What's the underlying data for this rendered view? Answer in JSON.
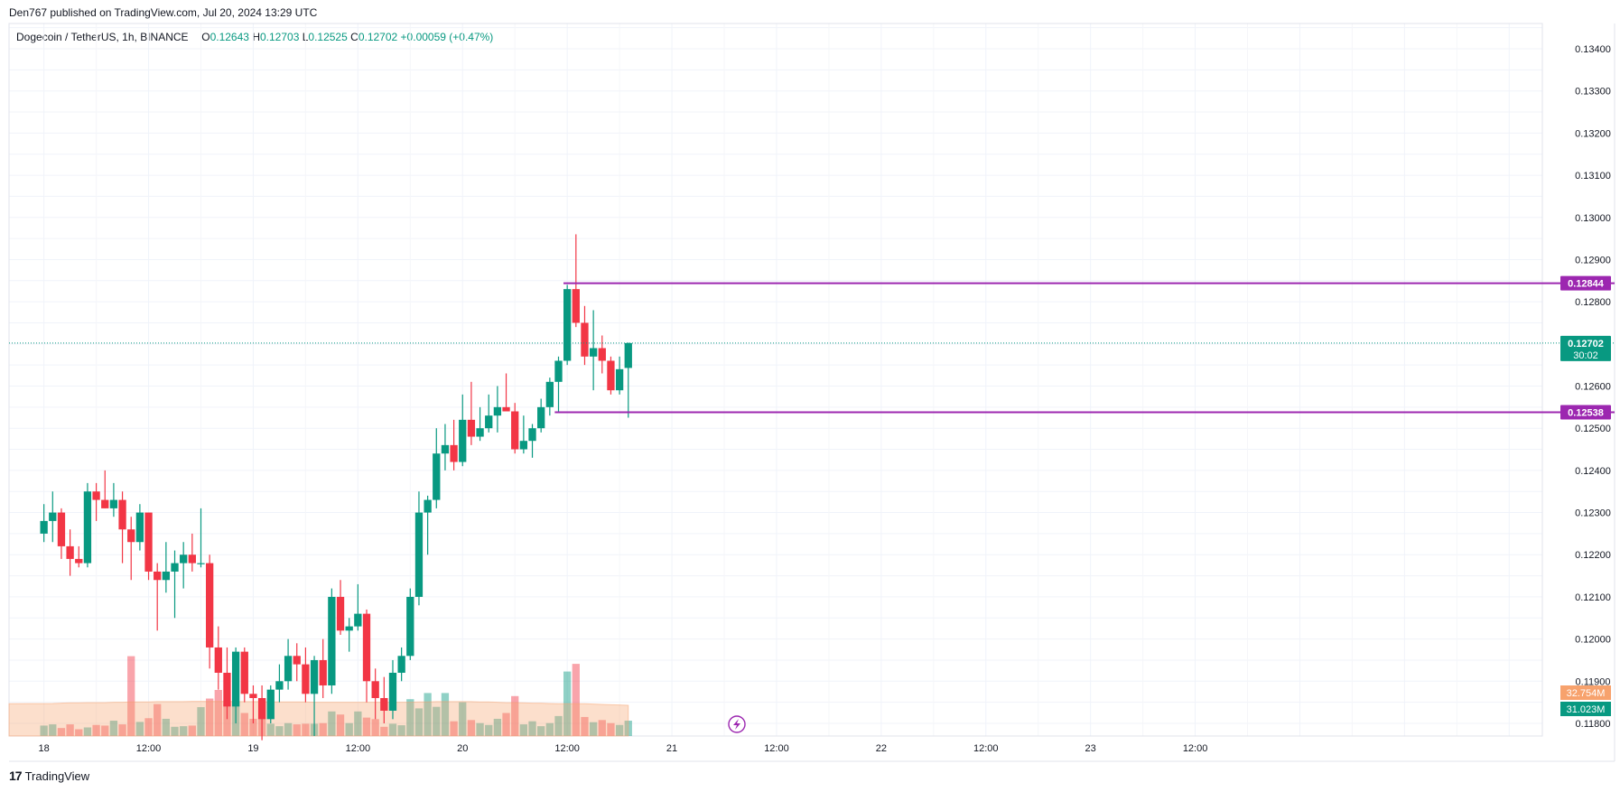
{
  "header": {
    "published": "Den767 published on TradingView.com, Jul 20, 2024 13:29 UTC"
  },
  "legend": {
    "symbol": "Dogecoin / TetherUS, 1h, BINANCE",
    "open_label": "O",
    "open": "0.12643",
    "high_label": "H",
    "high": "0.12703",
    "low_label": "L",
    "low": "0.12525",
    "close_label": "C",
    "close": "0.12702",
    "change": "+0.00059 (+0.47%)"
  },
  "footer": {
    "brand": "TradingView",
    "logo": "17"
  },
  "colors": {
    "up": "#089981",
    "down": "#f23645",
    "level": "#9c27b0",
    "volume_ma": "#f7a26d"
  },
  "chart_data": {
    "type": "candlestick",
    "y_ticks": [
      "0.13400",
      "0.13300",
      "0.13200",
      "0.13100",
      "0.13000",
      "0.12900",
      "0.12800",
      "0.12600",
      "0.12500",
      "0.12400",
      "0.12300",
      "0.12200",
      "0.12100",
      "0.12000",
      "0.11900",
      "0.11800"
    ],
    "y_range": [
      0.1177,
      0.1346
    ],
    "x_ticks": [
      "18",
      "12:00",
      "19",
      "12:00",
      "20",
      "12:00",
      "21",
      "12:00",
      "22",
      "12:00",
      "23",
      "12:00"
    ],
    "x_range_hours": [
      -4,
      171.8
    ],
    "grid": true,
    "candles": [
      {
        "o": 0.1225,
        "h": 0.1232,
        "l": 0.1223,
        "c": 0.1228
      },
      {
        "o": 0.1228,
        "h": 0.1235,
        "l": 0.1223,
        "c": 0.123
      },
      {
        "o": 0.123,
        "h": 0.1231,
        "l": 0.1219,
        "c": 0.1222
      },
      {
        "o": 0.1222,
        "h": 0.1226,
        "l": 0.1215,
        "c": 0.1219
      },
      {
        "o": 0.1219,
        "h": 0.1222,
        "l": 0.1217,
        "c": 0.1218
      },
      {
        "o": 0.1218,
        "h": 0.1237,
        "l": 0.1217,
        "c": 0.1235
      },
      {
        "o": 0.1235,
        "h": 0.1237,
        "l": 0.1228,
        "c": 0.1233
      },
      {
        "o": 0.1233,
        "h": 0.124,
        "l": 0.1231,
        "c": 0.1231
      },
      {
        "o": 0.1231,
        "h": 0.1237,
        "l": 0.1229,
        "c": 0.1233
      },
      {
        "o": 0.1233,
        "h": 0.1235,
        "l": 0.1218,
        "c": 0.1226
      },
      {
        "o": 0.1226,
        "h": 0.1229,
        "l": 0.1214,
        "c": 0.1223
      },
      {
        "o": 0.1223,
        "h": 0.1232,
        "l": 0.1221,
        "c": 0.123
      },
      {
        "o": 0.123,
        "h": 0.123,
        "l": 0.1214,
        "c": 0.1216
      },
      {
        "o": 0.1216,
        "h": 0.1218,
        "l": 0.1202,
        "c": 0.1214
      },
      {
        "o": 0.1214,
        "h": 0.1223,
        "l": 0.1211,
        "c": 0.1216
      },
      {
        "o": 0.1216,
        "h": 0.1221,
        "l": 0.1205,
        "c": 0.1218
      },
      {
        "o": 0.1218,
        "h": 0.1223,
        "l": 0.1212,
        "c": 0.122
      },
      {
        "o": 0.122,
        "h": 0.1225,
        "l": 0.1216,
        "c": 0.1218
      },
      {
        "o": 0.1218,
        "h": 0.1231,
        "l": 0.1217,
        "c": 0.1218
      },
      {
        "o": 0.1218,
        "h": 0.122,
        "l": 0.1193,
        "c": 0.1198
      },
      {
        "o": 0.1198,
        "h": 0.1203,
        "l": 0.1188,
        "c": 0.1192
      },
      {
        "o": 0.1192,
        "h": 0.1198,
        "l": 0.1181,
        "c": 0.1184
      },
      {
        "o": 0.1184,
        "h": 0.1198,
        "l": 0.118,
        "c": 0.1197
      },
      {
        "o": 0.1197,
        "h": 0.1198,
        "l": 0.1185,
        "c": 0.1187
      },
      {
        "o": 0.1187,
        "h": 0.1189,
        "l": 0.118,
        "c": 0.1186
      },
      {
        "o": 0.1186,
        "h": 0.1189,
        "l": 0.1176,
        "c": 0.1181
      },
      {
        "o": 0.1181,
        "h": 0.1189,
        "l": 0.118,
        "c": 0.1188
      },
      {
        "o": 0.1188,
        "h": 0.1194,
        "l": 0.1185,
        "c": 0.119
      },
      {
        "o": 0.119,
        "h": 0.12,
        "l": 0.1188,
        "c": 0.1196
      },
      {
        "o": 0.1196,
        "h": 0.1199,
        "l": 0.119,
        "c": 0.1194
      },
      {
        "o": 0.1194,
        "h": 0.1198,
        "l": 0.1185,
        "c": 0.1187
      },
      {
        "o": 0.1187,
        "h": 0.1196,
        "l": 0.1177,
        "c": 0.1195
      },
      {
        "o": 0.1195,
        "h": 0.12,
        "l": 0.1186,
        "c": 0.1189
      },
      {
        "o": 0.1189,
        "h": 0.1212,
        "l": 0.1187,
        "c": 0.121
      },
      {
        "o": 0.121,
        "h": 0.1214,
        "l": 0.1201,
        "c": 0.1202
      },
      {
        "o": 0.1202,
        "h": 0.1205,
        "l": 0.1197,
        "c": 0.1203
      },
      {
        "o": 0.1203,
        "h": 0.1213,
        "l": 0.1202,
        "c": 0.1206
      },
      {
        "o": 0.1206,
        "h": 0.1207,
        "l": 0.1185,
        "c": 0.119
      },
      {
        "o": 0.119,
        "h": 0.1193,
        "l": 0.1181,
        "c": 0.1186
      },
      {
        "o": 0.1186,
        "h": 0.1191,
        "l": 0.118,
        "c": 0.1183
      },
      {
        "o": 0.1183,
        "h": 0.1195,
        "l": 0.1181,
        "c": 0.1192
      },
      {
        "o": 0.1192,
        "h": 0.1198,
        "l": 0.119,
        "c": 0.1196
      },
      {
        "o": 0.1196,
        "h": 0.1212,
        "l": 0.1195,
        "c": 0.121
      },
      {
        "o": 0.121,
        "h": 0.1235,
        "l": 0.1208,
        "c": 0.123
      },
      {
        "o": 0.123,
        "h": 0.1234,
        "l": 0.122,
        "c": 0.1233
      },
      {
        "o": 0.1233,
        "h": 0.125,
        "l": 0.1231,
        "c": 0.1244
      },
      {
        "o": 0.1244,
        "h": 0.1251,
        "l": 0.124,
        "c": 0.1246
      },
      {
        "o": 0.1246,
        "h": 0.1252,
        "l": 0.124,
        "c": 0.1242
      },
      {
        "o": 0.1242,
        "h": 0.1258,
        "l": 0.1241,
        "c": 0.1252
      },
      {
        "o": 0.1252,
        "h": 0.1261,
        "l": 0.1246,
        "c": 0.1248
      },
      {
        "o": 0.1248,
        "h": 0.1255,
        "l": 0.1247,
        "c": 0.125
      },
      {
        "o": 0.125,
        "h": 0.1258,
        "l": 0.1249,
        "c": 0.1253
      },
      {
        "o": 0.1253,
        "h": 0.126,
        "l": 0.1249,
        "c": 0.1255
      },
      {
        "o": 0.1255,
        "h": 0.1263,
        "l": 0.1254,
        "c": 0.1254
      },
      {
        "o": 0.1254,
        "h": 0.1256,
        "l": 0.1244,
        "c": 0.1245
      },
      {
        "o": 0.1245,
        "h": 0.1253,
        "l": 0.1244,
        "c": 0.1247
      },
      {
        "o": 0.1247,
        "h": 0.1251,
        "l": 0.1243,
        "c": 0.125
      },
      {
        "o": 0.125,
        "h": 0.1257,
        "l": 0.1249,
        "c": 0.1255
      },
      {
        "o": 0.1255,
        "h": 0.1262,
        "l": 0.1253,
        "c": 0.1261
      },
      {
        "o": 0.1261,
        "h": 0.1267,
        "l": 0.1254,
        "c": 0.1266
      },
      {
        "o": 0.1266,
        "h": 0.1284,
        "l": 0.1265,
        "c": 0.1283
      },
      {
        "o": 0.1283,
        "h": 0.1296,
        "l": 0.1274,
        "c": 0.1275
      },
      {
        "o": 0.1275,
        "h": 0.1279,
        "l": 0.1265,
        "c": 0.1267
      },
      {
        "o": 0.1267,
        "h": 0.1278,
        "l": 0.1259,
        "c": 0.1269
      },
      {
        "o": 0.1269,
        "h": 0.1272,
        "l": 0.1263,
        "c": 0.1266
      },
      {
        "o": 0.1266,
        "h": 0.1267,
        "l": 0.1258,
        "c": 0.1259
      },
      {
        "o": 0.1259,
        "h": 0.1267,
        "l": 0.1258,
        "c": 0.1264
      },
      {
        "o": 0.12643,
        "h": 0.12703,
        "l": 0.12525,
        "c": 0.12702
      }
    ],
    "volumes": [
      3.4,
      3.8,
      2.6,
      3.8,
      2.2,
      2.8,
      3.6,
      3.4,
      5.0,
      3.8,
      26.0,
      4.6,
      5.8,
      10.4,
      5.6,
      3.0,
      3.2,
      3.4,
      9.4,
      12.2,
      15.0,
      10.5,
      11.0,
      7.5,
      5.6,
      6.0,
      4.0,
      3.2,
      4.2,
      3.8,
      4.0,
      4.0,
      4.2,
      8.0,
      7.0,
      4.2,
      8.0,
      6.0,
      5.5,
      3.0,
      4.0,
      3.5,
      12.0,
      9.0,
      14.0,
      9.5,
      14.0,
      4.8,
      11.0,
      5.2,
      4.2,
      3.6,
      5.6,
      7.5,
      13.0,
      3.8,
      4.8,
      3.2,
      4.2,
      6.5,
      21.0,
      23.5,
      6.2,
      4.5,
      5.2,
      4.2,
      3.6,
      5.0
    ],
    "volume_ma": [
      10.5,
      10.6,
      10.7,
      10.8,
      10.8,
      10.9,
      10.9,
      10.9,
      11.0,
      11.0,
      11.1,
      11.1,
      11.1,
      11.2,
      11.2,
      11.2,
      11.2,
      11.3,
      11.3,
      11.3,
      11.3,
      11.3,
      11.2,
      11.2,
      11.2,
      11.2,
      11.1,
      11.1,
      11.1,
      11.1,
      11.1,
      11.0,
      11.0,
      11.0,
      11.0,
      11.0,
      11.0,
      11.0,
      11.0,
      11.0,
      11.0,
      11.0,
      11.0,
      11.1,
      11.1,
      11.2,
      11.2,
      11.2,
      11.2,
      11.2,
      11.1,
      11.1,
      11.0,
      10.9,
      10.9,
      10.8,
      10.7,
      10.7,
      10.6,
      10.5,
      10.5,
      10.5,
      10.5,
      10.4,
      10.3,
      10.2,
      10.1,
      10.0
    ],
    "levels": [
      {
        "value": 0.12844,
        "label": "0.12844",
        "start_candle": 60
      },
      {
        "value": 0.12538,
        "label": "0.12538",
        "start_candle": 59
      }
    ],
    "last_price": {
      "value": 0.12702,
      "label": "0.12702",
      "countdown": "30:02"
    },
    "volume_labels": [
      {
        "label": "32.754M",
        "color": "#f7a26d"
      },
      {
        "label": "31.023M",
        "color": "#089981"
      }
    ]
  }
}
